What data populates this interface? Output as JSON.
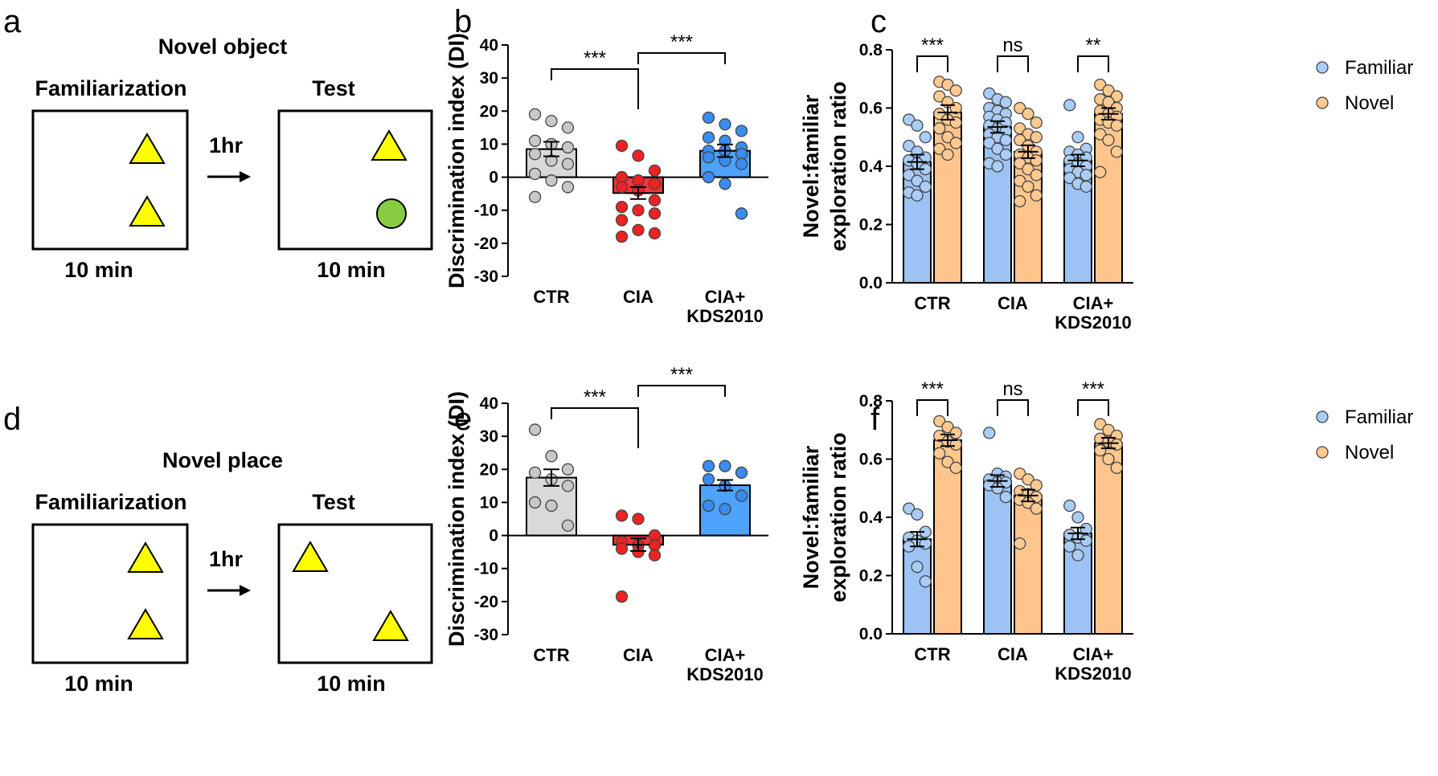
{
  "panels": {
    "a": {
      "letter": "a",
      "title": "Novel object",
      "left_label": "Familiarization",
      "right_label": "Test",
      "interval": "1hr",
      "left_duration": "10 min",
      "right_duration": "10 min"
    },
    "d": {
      "letter": "d",
      "title": "Novel place",
      "left_label": "Familiarization",
      "right_label": "Test",
      "interval": "1hr",
      "left_duration": "10 min",
      "right_duration": "10 min"
    }
  },
  "colors": {
    "ctr": "#d9d9d9",
    "ctr_dot": "#c8c8c8",
    "cia": "#ff3333",
    "cia_dot": "#ee2222",
    "kds": "#4da3ff",
    "kds_dot": "#3a8cf0",
    "familiar": "#9dc3f5",
    "familiar_dot": "#a9cdf8",
    "novel": "#ffc58c",
    "novel_dot": "#ffc98f",
    "triangle": "#ffff00",
    "circle": "#88cc44"
  },
  "chart_data": [
    {
      "panel": "b",
      "type": "bar",
      "categories": [
        "CTR",
        "CIA",
        "CIA+\nKDS2010"
      ],
      "ylabel": "Discrimination index (DI)",
      "ylim": [
        -30,
        40
      ],
      "yticks": [
        40,
        30,
        20,
        10,
        0,
        -10,
        -20,
        -30
      ],
      "values": [
        8.5,
        -4.8,
        8.0
      ],
      "sem": [
        2.2,
        1.8,
        1.9
      ],
      "points": [
        [
          19,
          17,
          15,
          11,
          10,
          9,
          7,
          5,
          4,
          1,
          -1,
          -3,
          -6
        ],
        [
          9.5,
          6.5,
          2,
          0,
          -1,
          -2,
          -3,
          -4,
          -7,
          -9,
          -10,
          -11,
          -13,
          -16,
          -17,
          -18
        ],
        [
          18,
          16,
          14,
          12,
          11,
          9,
          8,
          8,
          7,
          6,
          5,
          4,
          0,
          -2,
          -11
        ]
      ],
      "significance": [
        {
          "from": 0,
          "to": 1,
          "label": "***"
        },
        {
          "from": 1,
          "to": 2,
          "label": "***"
        }
      ]
    },
    {
      "panel": "c",
      "type": "bar",
      "categories": [
        "CTR",
        "CIA",
        "CIA+\nKDS2010"
      ],
      "ylabel": "Novel:familiar\nexploration ratio",
      "ylim": [
        0,
        0.8
      ],
      "yticks": [
        "0.8",
        "0.6",
        "0.4",
        "0.2",
        "0.0"
      ],
      "legend": [
        "Familiar",
        "Novel"
      ],
      "series": [
        {
          "name": "Familiar",
          "values": [
            0.415,
            0.535,
            0.42
          ],
          "sem": [
            0.025,
            0.02,
            0.02
          ],
          "points": [
            [
              0.56,
              0.54,
              0.5,
              0.47,
              0.45,
              0.43,
              0.42,
              0.41,
              0.39,
              0.37,
              0.35,
              0.33,
              0.31,
              0.3
            ],
            [
              0.65,
              0.63,
              0.62,
              0.6,
              0.59,
              0.58,
              0.57,
              0.56,
              0.55,
              0.54,
              0.53,
              0.52,
              0.51,
              0.5,
              0.49,
              0.48,
              0.46,
              0.44,
              0.41,
              0.4
            ],
            [
              0.61,
              0.5,
              0.46,
              0.45,
              0.44,
              0.43,
              0.42,
              0.41,
              0.4,
              0.39,
              0.38,
              0.37,
              0.36,
              0.34,
              0.33
            ]
          ]
        },
        {
          "name": "Novel",
          "values": [
            0.585,
            0.45,
            0.58
          ],
          "sem": [
            0.025,
            0.022,
            0.02
          ],
          "points": [
            [
              0.69,
              0.68,
              0.66,
              0.64,
              0.62,
              0.6,
              0.58,
              0.56,
              0.55,
              0.53,
              0.5,
              0.48,
              0.46,
              0.44
            ],
            [
              0.6,
              0.58,
              0.55,
              0.53,
              0.51,
              0.5,
              0.49,
              0.47,
              0.45,
              0.44,
              0.43,
              0.42,
              0.41,
              0.39,
              0.37,
              0.35,
              0.33,
              0.3,
              0.28
            ],
            [
              0.68,
              0.66,
              0.64,
              0.63,
              0.62,
              0.6,
              0.59,
              0.58,
              0.57,
              0.56,
              0.55,
              0.54,
              0.51,
              0.49,
              0.45,
              0.38
            ]
          ]
        }
      ],
      "significance": [
        "***",
        "ns",
        "**"
      ]
    },
    {
      "panel": "e",
      "type": "bar",
      "categories": [
        "CTR",
        "CIA",
        "CIA+\nKDS2010"
      ],
      "ylabel": "Discrimination index (DI)",
      "ylim": [
        -30,
        40
      ],
      "yticks": [
        40,
        30,
        20,
        10,
        0,
        -10,
        -20,
        -30
      ],
      "values": [
        17.5,
        -2.8,
        15.2
      ],
      "sem": [
        2.5,
        1.9,
        1.6
      ],
      "points": [
        [
          32,
          24,
          20,
          19,
          17,
          15,
          10,
          9,
          3
        ],
        [
          6,
          5,
          0,
          -2,
          -3,
          -3,
          -4,
          -5,
          -6,
          -18.5
        ],
        [
          21,
          21,
          19,
          17,
          15,
          12,
          9,
          8
        ]
      ],
      "significance": [
        {
          "from": 0,
          "to": 1,
          "label": "***"
        },
        {
          "from": 1,
          "to": 2,
          "label": "***"
        }
      ]
    },
    {
      "panel": "f",
      "type": "bar",
      "categories": [
        "CTR",
        "CIA",
        "CIA+\nKDS2010"
      ],
      "ylabel": "Novel:familiar\nexploration ratio",
      "ylim": [
        0,
        0.8
      ],
      "yticks": [
        "0.8",
        "0.6",
        "0.4",
        "0.2",
        "0.0"
      ],
      "legend": [
        "Familiar",
        "Novel"
      ],
      "series": [
        {
          "name": "Familiar",
          "values": [
            0.325,
            0.525,
            0.345
          ],
          "sem": [
            0.025,
            0.02,
            0.02
          ],
          "points": [
            [
              0.43,
              0.41,
              0.35,
              0.33,
              0.32,
              0.31,
              0.3,
              0.23,
              0.18
            ],
            [
              0.69,
              0.55,
              0.54,
              0.53,
              0.52,
              0.52,
              0.51,
              0.5,
              0.47
            ],
            [
              0.44,
              0.4,
              0.36,
              0.34,
              0.33,
              0.32,
              0.3,
              0.27
            ]
          ]
        },
        {
          "name": "Novel",
          "values": [
            0.665,
            0.475,
            0.655
          ],
          "sem": [
            0.02,
            0.02,
            0.018
          ],
          "points": [
            [
              0.73,
              0.71,
              0.69,
              0.68,
              0.66,
              0.65,
              0.62,
              0.59,
              0.57
            ],
            [
              0.55,
              0.53,
              0.51,
              0.49,
              0.48,
              0.47,
              0.46,
              0.45,
              0.43,
              0.31
            ],
            [
              0.72,
              0.7,
              0.68,
              0.67,
              0.66,
              0.65,
              0.63,
              0.6,
              0.57
            ]
          ]
        }
      ],
      "significance": [
        "***",
        "ns",
        "***"
      ]
    }
  ]
}
